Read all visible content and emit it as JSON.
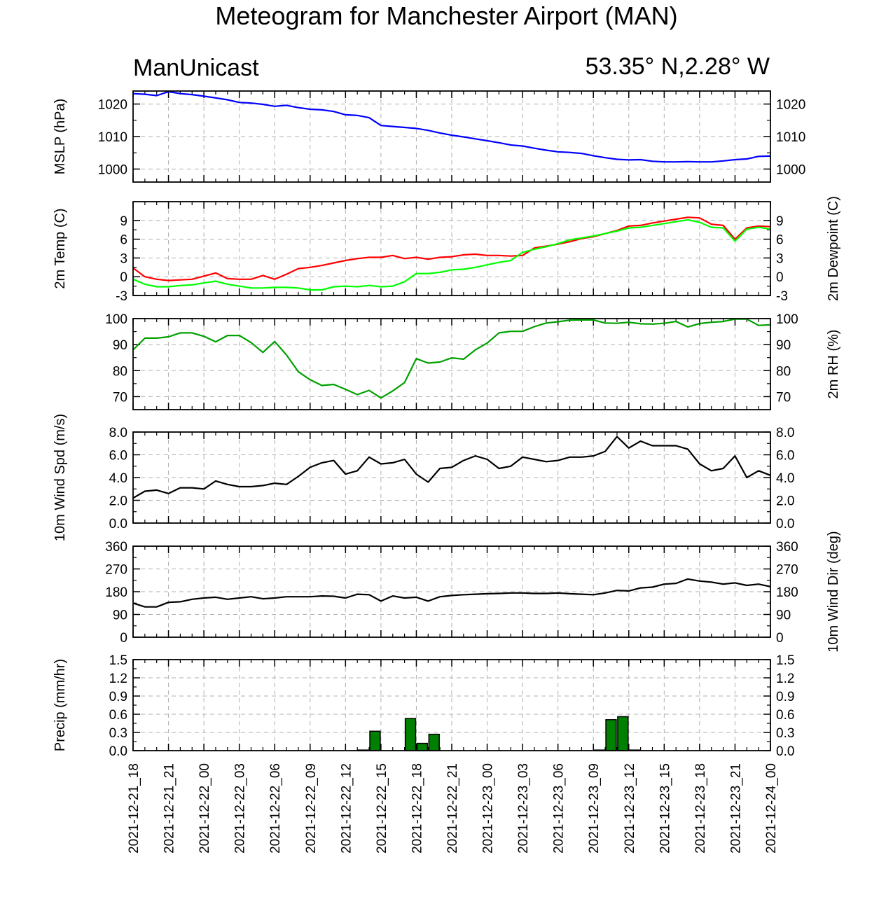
{
  "title": "Meteogram for Manchester Airport (MAN)",
  "label_left": "ManUnicast",
  "label_right": "53.35° N,2.28° W",
  "colors": {
    "mslp": "#0000ff",
    "temp": "#ff0000",
    "dewpoint": "#00ff00",
    "rh": "#00a000",
    "wind": "#000000",
    "precip_fill": "#008000",
    "grid": "#b0b0b0"
  },
  "chart_data": {
    "type": "line",
    "x_range_hours": [
      0,
      54
    ],
    "x_ticks": [
      "2021-12-21_18",
      "2021-12-21_21",
      "2021-12-22_00",
      "2021-12-22_03",
      "2021-12-22_06",
      "2021-12-22_09",
      "2021-12-22_12",
      "2021-12-22_15",
      "2021-12-22_18",
      "2021-12-22_21",
      "2021-12-23_00",
      "2021-12-23_03",
      "2021-12-23_06",
      "2021-12-23_09",
      "2021-12-23_12",
      "2021-12-23_15",
      "2021-12-23_18",
      "2021-12-23_21",
      "2021-12-24_00"
    ],
    "panels": [
      {
        "id": "mslp",
        "ylabel_left": "MSLP (hPa)",
        "ylabel_right": "",
        "ylim": [
          996,
          1024
        ],
        "yticks": [
          1000,
          1010,
          1020
        ],
        "tick_labels": [
          "1000",
          "1010",
          "1020"
        ],
        "series": [
          {
            "color_key": "mslp",
            "values": [
              1023.2,
              1023,
              1022.6,
              1023.8,
              1023.2,
              1022.9,
              1022.4,
              1021.9,
              1021.3,
              1020.5,
              1020.3,
              1019.9,
              1019.3,
              1019.6,
              1018.9,
              1018.4,
              1018.2,
              1017.7,
              1016.7,
              1016.5,
              1015.8,
              1013.4,
              1013.1,
              1012.8,
              1012.5,
              1011.9,
              1011.1,
              1010.4,
              1009.9,
              1009.3,
              1008.7,
              1008.1,
              1007.4,
              1007.1,
              1006.4,
              1005.8,
              1005.3,
              1005.1,
              1004.8,
              1004.1,
              1003.5,
              1003,
              1002.8,
              1002.9,
              1002.4,
              1002.2,
              1002.2,
              1002.3,
              1002.2,
              1002.2,
              1002.5,
              1002.9,
              1003.1,
              1003.9,
              1004
            ]
          }
        ]
      },
      {
        "id": "temp",
        "ylabel_left": "2m Temp (C)",
        "ylabel_right": "2m Dewpoint (C)",
        "ylim": [
          -3,
          12
        ],
        "yticks": [
          -3,
          0,
          3,
          6,
          9
        ],
        "tick_labels": [
          "-3",
          "0",
          "3",
          "6",
          "9"
        ],
        "series": [
          {
            "color_key": "temp",
            "values": [
              1.4,
              0,
              -0.4,
              -0.6,
              -0.5,
              -0.4,
              0.1,
              0.6,
              -0.3,
              -0.4,
              -0.4,
              0.2,
              -0.4,
              0.4,
              1.3,
              1.5,
              1.8,
              2.2,
              2.6,
              2.9,
              3.1,
              3.1,
              3.4,
              2.9,
              3.1,
              2.8,
              3.1,
              3.2,
              3.5,
              3.6,
              3.4,
              3.4,
              3.3,
              3.4,
              4.6,
              4.9,
              5.2,
              5.6,
              6.1,
              6.4,
              6.9,
              7.4,
              8.1,
              8.2,
              8.6,
              8.9,
              9.2,
              9.5,
              9.4,
              8.4,
              8.2,
              6,
              7.8,
              8.1,
              8
            ]
          },
          {
            "color_key": "dewpoint",
            "values": [
              -0.4,
              -1.2,
              -1.6,
              -1.6,
              -1.4,
              -1.3,
              -1,
              -0.7,
              -1.2,
              -1.5,
              -1.8,
              -1.8,
              -1.7,
              -1.7,
              -1.8,
              -2.1,
              -2.1,
              -1.6,
              -1.5,
              -1.6,
              -1.4,
              -1.6,
              -1.5,
              -0.8,
              0.5,
              0.5,
              0.7,
              1.1,
              1.2,
              1.5,
              1.9,
              2.3,
              2.6,
              3.9,
              4.4,
              4.8,
              5.3,
              5.9,
              6.2,
              6.5,
              6.9,
              7.3,
              7.8,
              7.9,
              8.2,
              8.5,
              8.8,
              9.1,
              8.7,
              7.9,
              7.8,
              5.7,
              7.6,
              7.9,
              7.6
            ]
          }
        ]
      },
      {
        "id": "rh",
        "ylabel_left": "",
        "ylabel_right": "2m RH (%)",
        "ylim": [
          65,
          100
        ],
        "yticks": [
          70,
          80,
          90,
          100
        ],
        "tick_labels": [
          "70",
          "80",
          "90",
          "100"
        ],
        "series": [
          {
            "color_key": "rh",
            "values": [
              88,
              92.5,
              92.5,
              93,
              94.5,
              94.5,
              93.2,
              91.1,
              93.5,
              93.5,
              90.8,
              87,
              91.2,
              86,
              79.6,
              76.5,
              74.3,
              74.7,
              72.8,
              70.8,
              72.4,
              69.5,
              72.2,
              75.4,
              84.6,
              82.9,
              83.3,
              84.9,
              84.4,
              88,
              90.6,
              94.5,
              95.1,
              95.1,
              96.9,
              98.3,
              98.8,
              99.4,
              99.5,
              99.5,
              98.3,
              98.2,
              98.6,
              98,
              97.9,
              98.2,
              98.9,
              96.8,
              98.1,
              98.6,
              98.9,
              99.8,
              99.8,
              97.4,
              97.6
            ]
          }
        ]
      },
      {
        "id": "wspd",
        "ylabel_left": "10m Wind Spd (m/s)",
        "ylabel_right": "",
        "ylim": [
          0,
          8
        ],
        "yticks": [
          0,
          2,
          4,
          6,
          8
        ],
        "tick_labels": [
          "0.0",
          "2.0",
          "4.0",
          "6.0",
          "8.0"
        ],
        "series": [
          {
            "color_key": "wind",
            "values": [
              2.2,
              2.8,
              2.9,
              2.6,
              3.1,
              3.1,
              3,
              3.7,
              3.4,
              3.2,
              3.2,
              3.3,
              3.5,
              3.4,
              4.1,
              4.9,
              5.3,
              5.5,
              4.3,
              4.6,
              5.8,
              5.2,
              5.3,
              5.6,
              4.3,
              3.6,
              4.8,
              4.9,
              5.5,
              5.9,
              5.6,
              4.8,
              5,
              5.8,
              5.6,
              5.4,
              5.5,
              5.8,
              5.8,
              5.9,
              6.3,
              7.6,
              6.6,
              7.2,
              6.8,
              6.8,
              6.8,
              6.5,
              5.2,
              4.6,
              4.8,
              5.9,
              4,
              4.6,
              4.2
            ]
          }
        ]
      },
      {
        "id": "wdir",
        "ylabel_left": "",
        "ylabel_right": "10m Wind Dir (deg)",
        "ylim": [
          0,
          360
        ],
        "yticks": [
          0,
          90,
          180,
          270,
          360
        ],
        "tick_labels": [
          "0",
          "90",
          "180",
          "270",
          "360"
        ],
        "series": [
          {
            "color_key": "wind",
            "values": [
              135,
              120,
              120,
              138,
              140,
              150,
              155,
              158,
              150,
              155,
              160,
              152,
              155,
              160,
              160,
              160,
              163,
              162,
              155,
              170,
              168,
              143,
              163,
              155,
              158,
              143,
              160,
              165,
              168,
              170,
              172,
              173,
              175,
              175,
              173,
              173,
              175,
              172,
              170,
              168,
              175,
              185,
              183,
              195,
              198,
              210,
              213,
              230,
              222,
              218,
              210,
              215,
              205,
              210,
              200
            ]
          }
        ]
      },
      {
        "id": "precip",
        "ylabel_left": "Precip (mm/hr)",
        "ylabel_right": "",
        "ylim": [
          0,
          1.5
        ],
        "yticks": [
          0,
          0.3,
          0.6,
          0.9,
          1.2,
          1.5
        ],
        "tick_labels": [
          "0.0",
          "0.3",
          "0.6",
          "0.9",
          "1.2",
          "1.5"
        ],
        "bars": [
          0,
          0,
          0,
          0,
          0,
          0,
          0,
          0,
          0,
          0,
          0,
          0,
          0,
          0,
          0,
          0,
          0,
          0,
          0,
          0.01,
          0.32,
          0,
          0,
          0.53,
          0.12,
          0.27,
          0,
          0,
          0,
          0,
          0,
          0,
          0,
          0,
          0,
          0,
          0,
          0,
          0,
          0.01,
          0.51,
          0.56,
          0.01,
          0,
          0,
          0,
          0,
          0,
          0,
          0,
          0,
          0,
          0,
          0
        ]
      }
    ]
  }
}
